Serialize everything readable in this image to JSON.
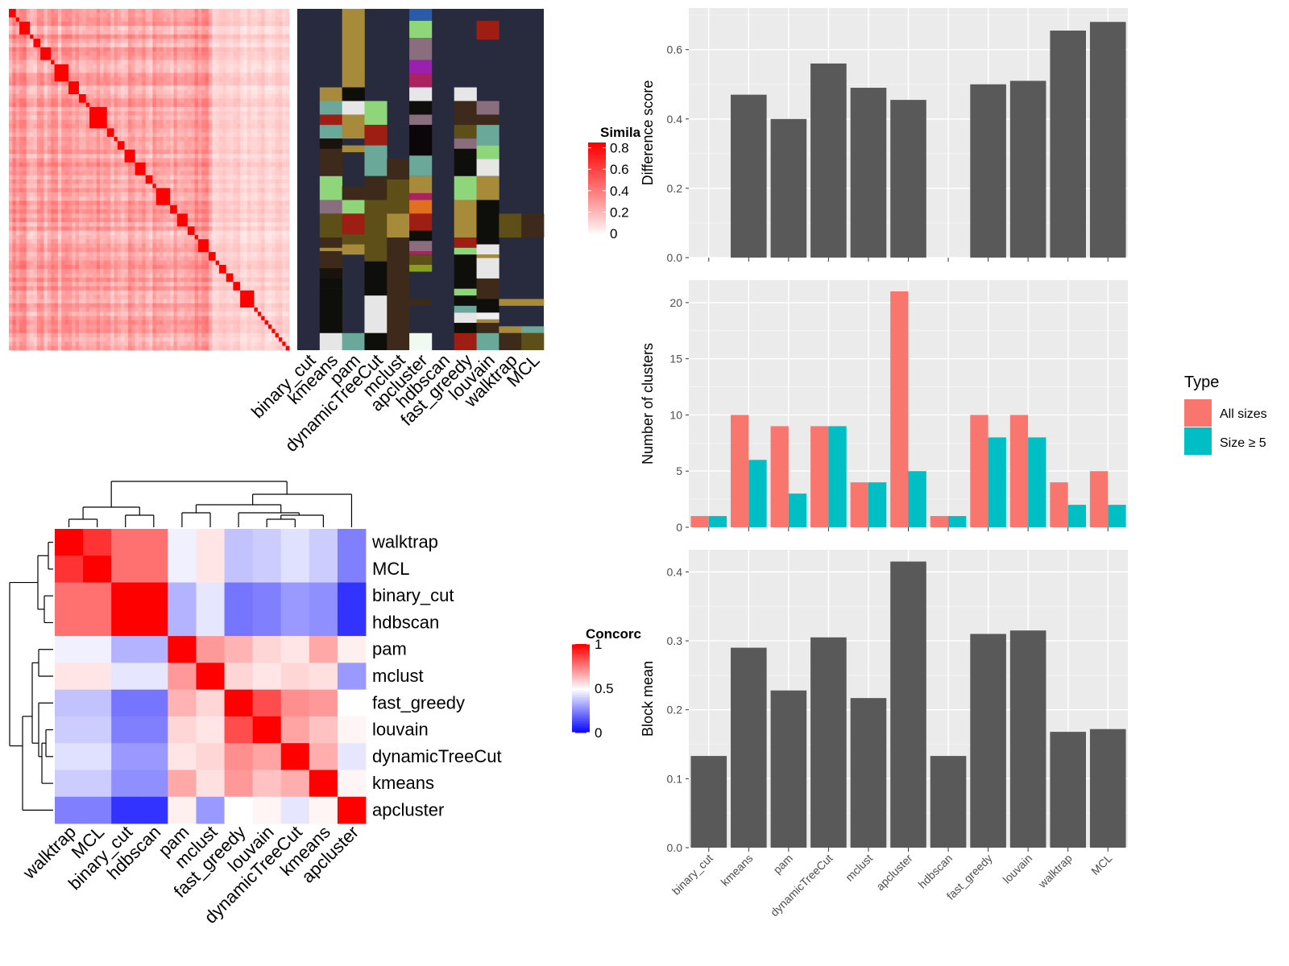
{
  "methods_order": [
    "binary_cut",
    "kmeans",
    "pam",
    "dynamicTreeCut",
    "mclust",
    "apcluster",
    "hdbscan",
    "fast_greedy",
    "louvain",
    "walktrap",
    "MCL"
  ],
  "similarity_heatmap": {
    "legend_title": "Simila",
    "legend_ticks": [
      "0.8",
      "0.6",
      "0.4",
      "0.2",
      "0"
    ],
    "tick_values": [
      0.8,
      0.6,
      0.4,
      0.2,
      0
    ],
    "range": [
      0,
      0.85
    ],
    "n": 80,
    "blocks": [
      2,
      1,
      3,
      1,
      2,
      3,
      1,
      4,
      3,
      2,
      1,
      5,
      2,
      1,
      2,
      3,
      3,
      2,
      1,
      4,
      2,
      3,
      2,
      1,
      3,
      2,
      1,
      2,
      2,
      2,
      4
    ]
  },
  "cluster_annotation": {
    "columns": [
      "binary_cut",
      "kmeans",
      "pam",
      "dynamicTreeCut",
      "mclust",
      "apcluster",
      "hdbscan",
      "fast_greedy",
      "louvain",
      "walktrap",
      "MCL"
    ],
    "background_color": "#282A3E"
  },
  "concordance_heatmap": {
    "legend_title": "Concorc",
    "legend_ticks": [
      "1",
      "0.5",
      "0"
    ],
    "tick_values": [
      1,
      0.5,
      0
    ],
    "order": [
      "walktrap",
      "MCL",
      "binary_cut",
      "hdbscan",
      "pam",
      "mclust",
      "fast_greedy",
      "louvain",
      "dynamicTreeCut",
      "kmeans",
      "apcluster"
    ],
    "matrix": [
      [
        1.0,
        0.9,
        0.78,
        0.78,
        0.47,
        0.55,
        0.38,
        0.4,
        0.44,
        0.4,
        0.25
      ],
      [
        0.9,
        1.0,
        0.78,
        0.78,
        0.47,
        0.55,
        0.38,
        0.4,
        0.44,
        0.4,
        0.25
      ],
      [
        0.78,
        0.78,
        1.0,
        1.0,
        0.35,
        0.45,
        0.23,
        0.25,
        0.3,
        0.28,
        0.1
      ],
      [
        0.78,
        0.78,
        1.0,
        1.0,
        0.35,
        0.45,
        0.23,
        0.25,
        0.3,
        0.28,
        0.1
      ],
      [
        0.47,
        0.47,
        0.35,
        0.35,
        1.0,
        0.7,
        0.65,
        0.58,
        0.55,
        0.67,
        0.53
      ],
      [
        0.55,
        0.55,
        0.45,
        0.45,
        0.7,
        1.0,
        0.58,
        0.55,
        0.58,
        0.56,
        0.3
      ],
      [
        0.38,
        0.38,
        0.23,
        0.23,
        0.65,
        0.58,
        1.0,
        0.85,
        0.72,
        0.7,
        0.5
      ],
      [
        0.4,
        0.4,
        0.25,
        0.25,
        0.58,
        0.55,
        0.85,
        1.0,
        0.68,
        0.62,
        0.52
      ],
      [
        0.44,
        0.44,
        0.3,
        0.3,
        0.55,
        0.58,
        0.72,
        0.68,
        1.0,
        0.66,
        0.45
      ],
      [
        0.4,
        0.4,
        0.28,
        0.28,
        0.67,
        0.56,
        0.7,
        0.62,
        0.66,
        1.0,
        0.52
      ],
      [
        0.25,
        0.25,
        0.1,
        0.1,
        0.53,
        0.3,
        0.5,
        0.52,
        0.45,
        0.52,
        1.0
      ]
    ]
  },
  "chart_data": [
    {
      "type": "bar",
      "categories": [
        "binary_cut",
        "kmeans",
        "pam",
        "dynamicTreeCut",
        "mclust",
        "apcluster",
        "hdbscan",
        "fast_greedy",
        "louvain",
        "walktrap",
        "MCL"
      ],
      "values": [
        0,
        0.47,
        0.4,
        0.56,
        0.49,
        0.455,
        0,
        0.5,
        0.51,
        0.655,
        0.68
      ],
      "ylabel": "Difference score",
      "ylim": [
        0,
        0.72
      ],
      "yticks": [
        0.0,
        0.2,
        0.4,
        0.6
      ],
      "ytick_labels": [
        "0.0",
        "0.2",
        "0.4",
        "0.6"
      ],
      "bar_color": "#595959"
    },
    {
      "type": "bar",
      "categories": [
        "binary_cut",
        "kmeans",
        "pam",
        "dynamicTreeCut",
        "mclust",
        "apcluster",
        "hdbscan",
        "fast_greedy",
        "louvain",
        "walktrap",
        "MCL"
      ],
      "series": [
        {
          "name": "All sizes",
          "values": [
            1,
            10,
            9,
            9,
            4,
            21,
            1,
            10,
            10,
            4,
            5
          ],
          "color": "#F8766D"
        },
        {
          "name": "Size ≥ 5",
          "values": [
            1,
            6,
            3,
            9,
            4,
            5,
            1,
            8,
            8,
            2,
            2
          ],
          "color": "#00BFC4"
        }
      ],
      "ylabel": "Number of clusters",
      "ylim": [
        0,
        22
      ],
      "yticks": [
        0,
        5,
        10,
        15,
        20
      ],
      "ytick_labels": [
        "0",
        "5",
        "10",
        "15",
        "20"
      ],
      "legend": {
        "title": "Type",
        "position": "right"
      }
    },
    {
      "type": "bar",
      "categories": [
        "binary_cut",
        "kmeans",
        "pam",
        "dynamicTreeCut",
        "mclust",
        "apcluster",
        "hdbscan",
        "fast_greedy",
        "louvain",
        "walktrap",
        "MCL"
      ],
      "values": [
        0.133,
        0.29,
        0.228,
        0.305,
        0.217,
        0.415,
        0.133,
        0.31,
        0.315,
        0.168,
        0.172
      ],
      "ylabel": "Block mean",
      "ylim": [
        0,
        0.432
      ],
      "yticks": [
        0.0,
        0.1,
        0.2,
        0.3,
        0.4
      ],
      "ytick_labels": [
        "0.0",
        "0.1",
        "0.2",
        "0.3",
        "0.4"
      ],
      "bar_color": "#595959"
    }
  ]
}
